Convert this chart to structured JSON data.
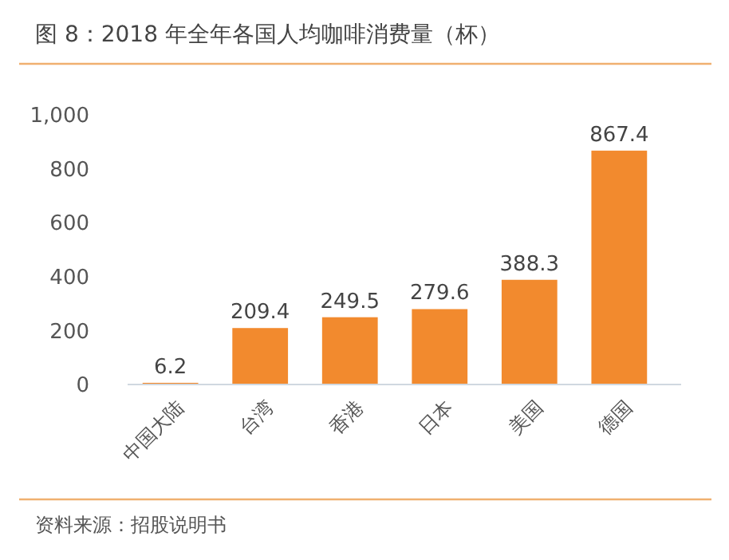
{
  "chart_data": {
    "type": "bar",
    "title": "图 8：2018 年全年各国人均咖啡消费量（杯）",
    "categories": [
      "中国大陆",
      "台湾",
      "香港",
      "日本",
      "美国",
      "德国"
    ],
    "values": [
      6.2,
      209.4,
      249.5,
      279.6,
      388.3,
      867.4
    ],
    "color": "#f28a2e",
    "ylim": [
      0,
      1000
    ],
    "yticks": [
      0,
      200,
      400,
      600,
      800,
      {
        "value": 1000,
        "label": "1,000"
      }
    ],
    "data_labels": true,
    "grid": false,
    "annotations": [
      "资料来源：招股说明书"
    ]
  }
}
